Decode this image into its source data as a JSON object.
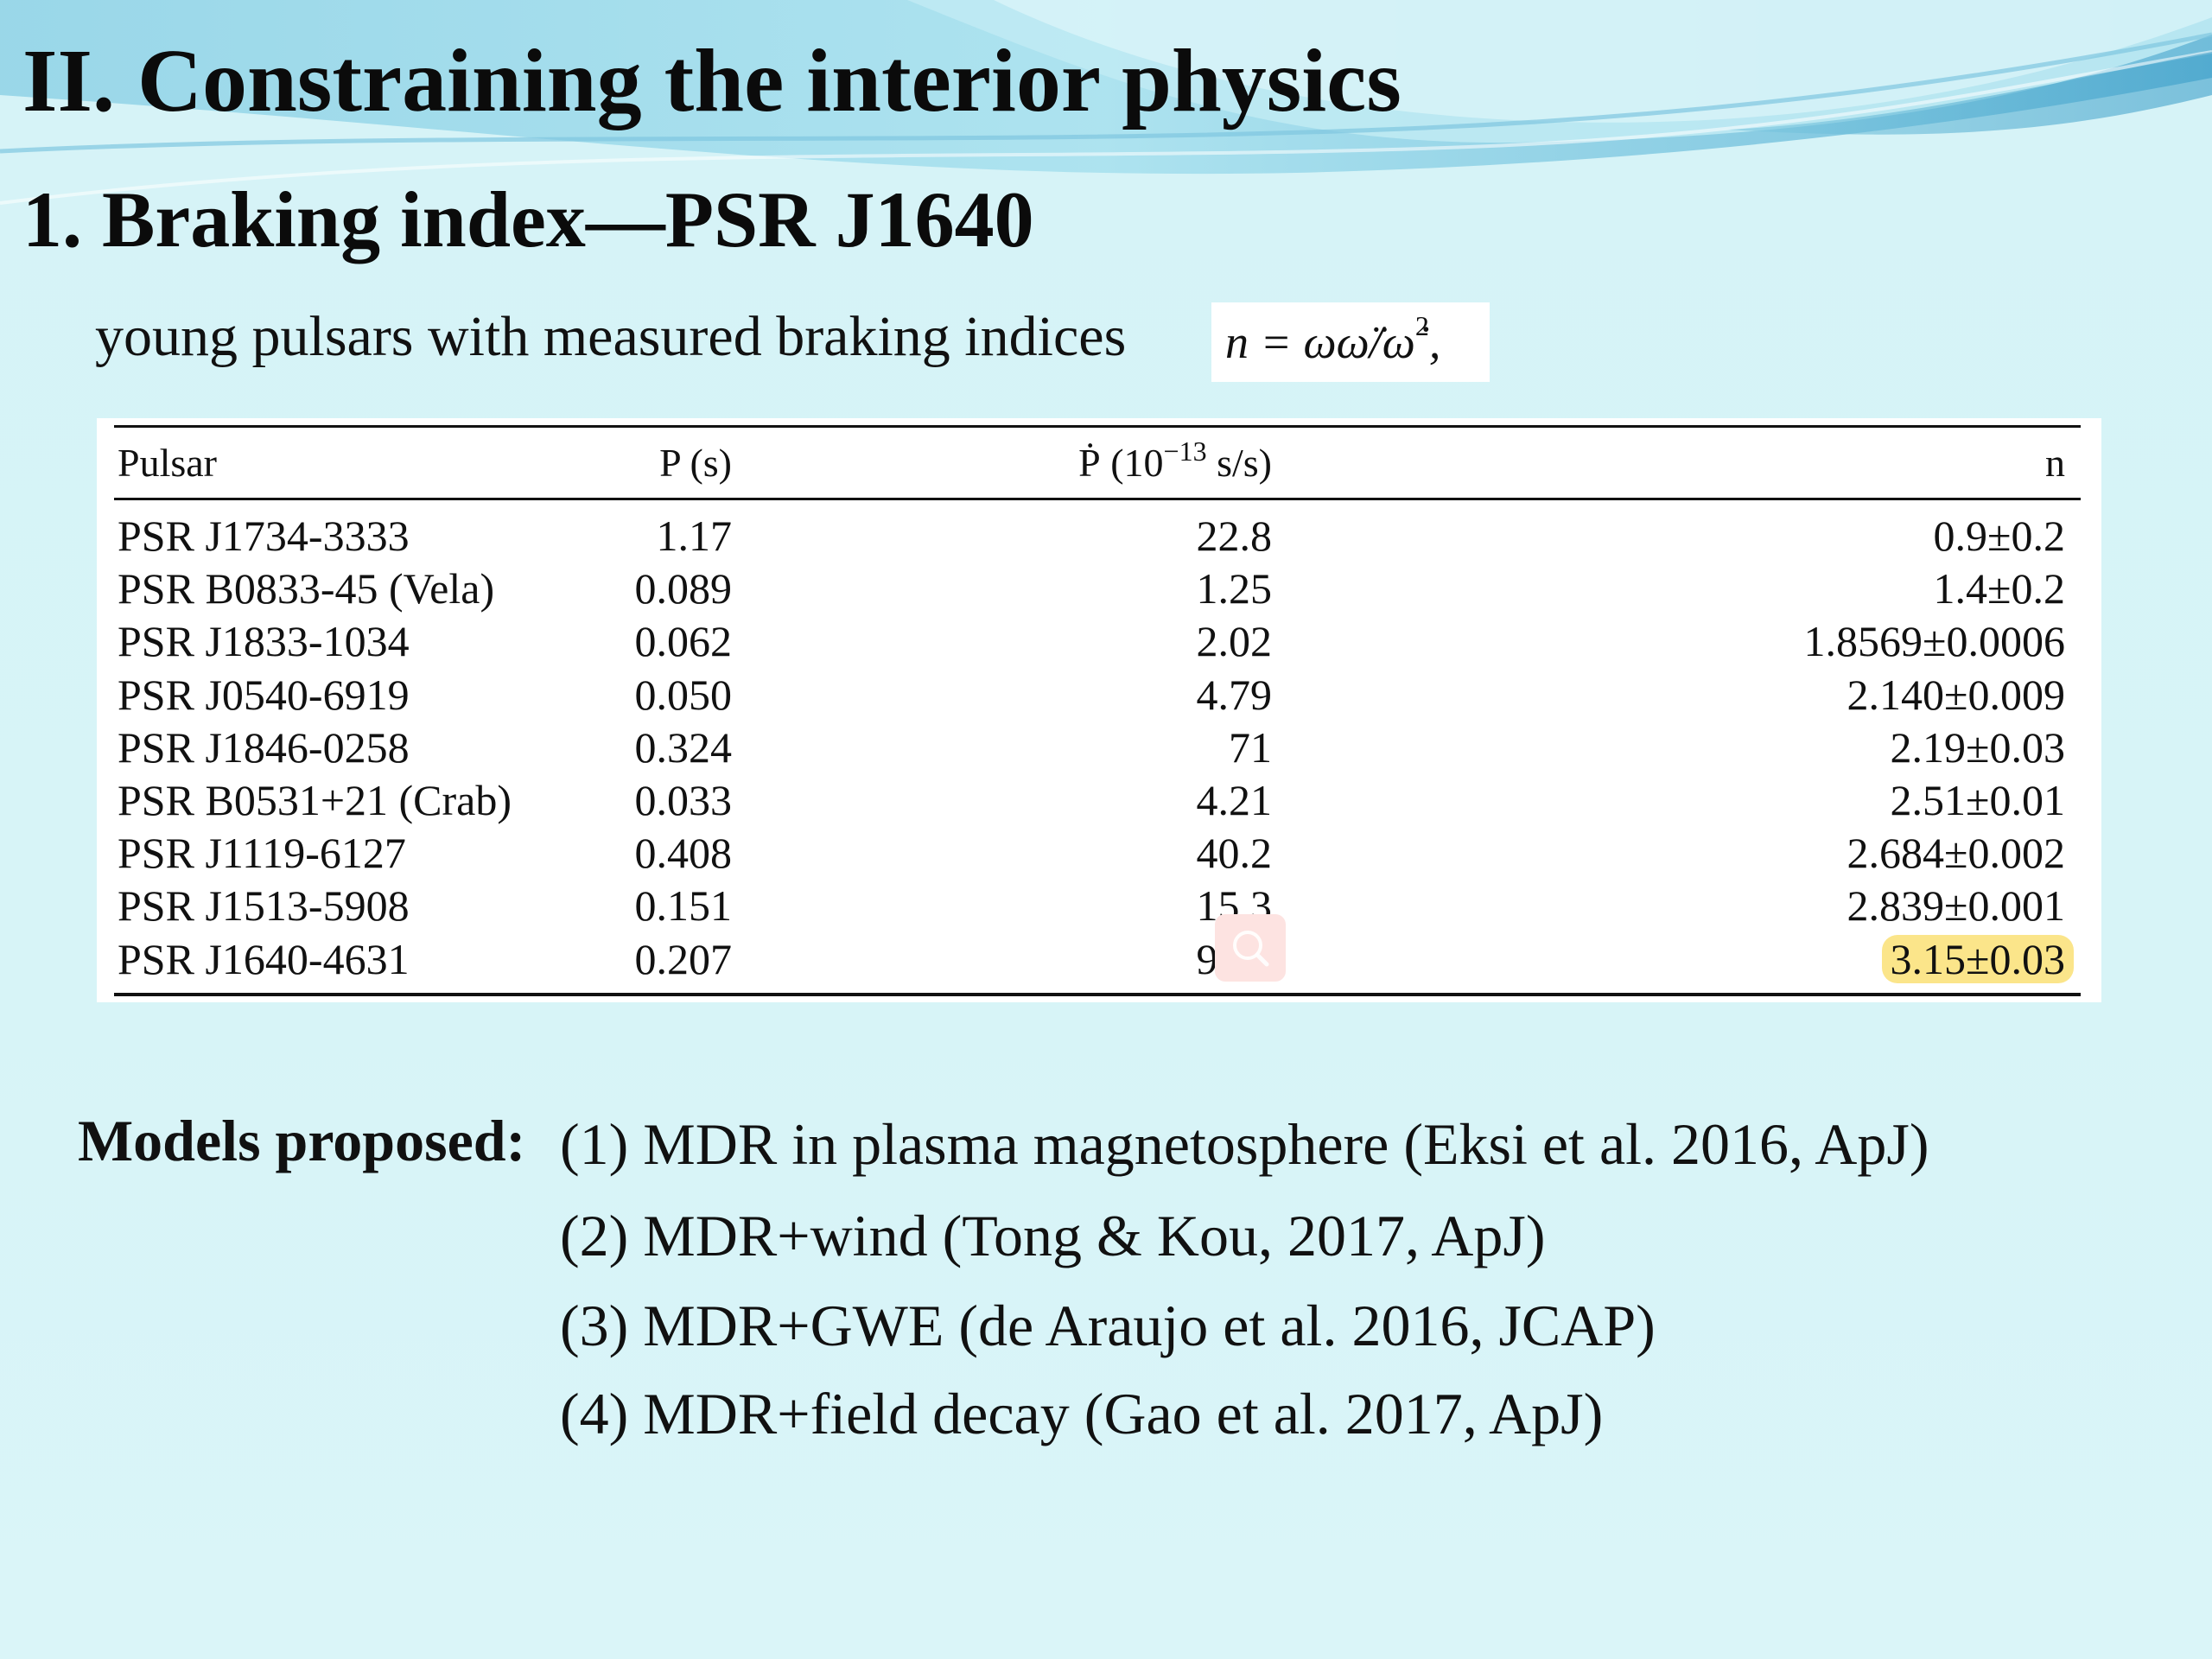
{
  "slide": {
    "title": "II. Constraining the interior physics",
    "subtitle": "1. Braking index—PSR J1640",
    "intro_text": "young pulsars with measured braking indices",
    "formula": "n = ωω̈/ω̇",
    "formula_exponent": "2",
    "formula_suffix": ","
  },
  "table": {
    "headers": {
      "pulsar": "Pulsar",
      "period": "P (s)",
      "pdot_prefix": "Ṗ (10",
      "pdot_exponent": "−13",
      "pdot_suffix": " s/s)",
      "n": "n"
    },
    "rows": [
      {
        "pulsar": "PSR J1734-3333",
        "P": "1.17",
        "Pdot": "22.8",
        "n": "0.9±0.2"
      },
      {
        "pulsar": "PSR B0833-45 (Vela)",
        "P": "0.089",
        "Pdot": "1.25",
        "n": "1.4±0.2"
      },
      {
        "pulsar": "PSR J1833-1034",
        "P": "0.062",
        "Pdot": "2.02",
        "n": "1.8569±0.0006"
      },
      {
        "pulsar": "PSR J0540-6919",
        "P": "0.050",
        "Pdot": "4.79",
        "n": "2.140±0.009"
      },
      {
        "pulsar": "PSR J1846-0258",
        "P": "0.324",
        "Pdot": "71",
        "n": "2.19±0.03"
      },
      {
        "pulsar": "PSR B0531+21 (Crab)",
        "P": "0.033",
        "Pdot": "4.21",
        "n": "2.51±0.01"
      },
      {
        "pulsar": "PSR J1119-6127",
        "P": "0.408",
        "Pdot": "40.2",
        "n": "2.684±0.002"
      },
      {
        "pulsar": "PSR J1513-5908",
        "P": "0.151",
        "Pdot": "15.3",
        "n": "2.839±0.001"
      },
      {
        "pulsar": "PSR J1640-4631",
        "P": "0.207",
        "Pdot": "9.72",
        "n": "3.15±0.03",
        "highlighted": true
      }
    ],
    "highlight_color": "#fbe58a"
  },
  "models": {
    "label": "Models proposed:",
    "items": [
      "(1) MDR in plasma magnetosphere (Eksi et al. 2016, ApJ)",
      "(2) MDR+wind (Tong & Kou, 2017, ApJ)",
      "(3) MDR+GWE (de Araujo et al. 2016, JCAP)",
      "(4) MDR+field decay (Gao et al. 2017, ApJ)"
    ]
  },
  "overlay": {
    "icon": "search-icon",
    "badge_color": "#fde3e1"
  },
  "theme": {
    "background": "#d6f3f7",
    "wave_light": "#a9e3ee",
    "wave_dark": "#5fb6d6"
  }
}
